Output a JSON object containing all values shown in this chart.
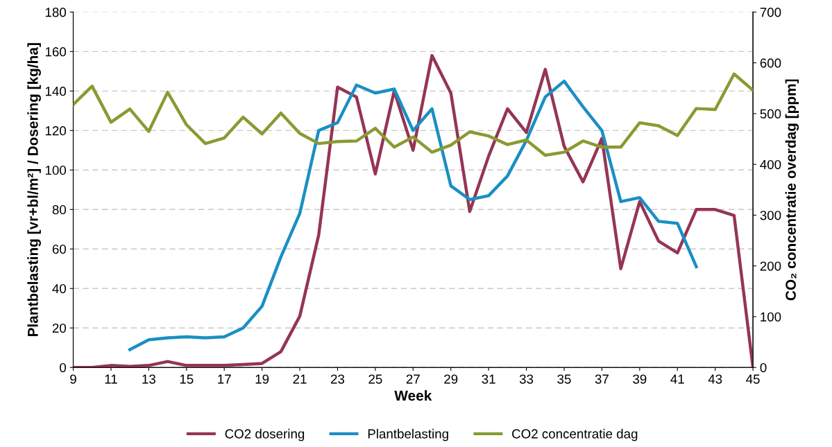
{
  "chart_data": {
    "type": "line",
    "xlabel": "Week",
    "ylabel": "Plantbelasting [vr+bl/m²] / Dosering [kg/ha]",
    "y2label": "CO₂ concentratie overdag [ppm]",
    "xlim": [
      9,
      45
    ],
    "xticks": [
      9,
      11,
      13,
      15,
      17,
      19,
      21,
      23,
      25,
      27,
      29,
      31,
      33,
      35,
      37,
      39,
      41,
      43,
      45
    ],
    "ylim": [
      0,
      180
    ],
    "yticks": [
      0,
      20,
      40,
      60,
      80,
      100,
      120,
      140,
      160,
      180
    ],
    "y2lim": [
      0,
      700
    ],
    "y2ticks": [
      0,
      100,
      200,
      300,
      400,
      500,
      600,
      700
    ],
    "grid": "y",
    "legend": "bottom",
    "marker": "none",
    "line_style": "solid",
    "series": [
      {
        "name": "CO2 dosering",
        "color": "#953553",
        "x": [
          9,
          10,
          11,
          12,
          13,
          14,
          15,
          16,
          17,
          18,
          19,
          20,
          21,
          22,
          23,
          24,
          25,
          26,
          27,
          28,
          29,
          30,
          31,
          32,
          33,
          34,
          35,
          36,
          37,
          38,
          39,
          40,
          41,
          42,
          43,
          44,
          45
        ],
        "values": [
          0,
          0,
          1,
          0.5,
          1,
          3,
          1,
          1,
          1,
          1.5,
          2,
          8,
          26,
          67,
          142,
          137,
          98,
          140,
          110,
          158,
          139,
          79,
          107,
          131,
          119,
          151,
          112,
          94,
          116,
          50,
          84,
          64,
          58,
          80,
          80,
          77,
          0
        ]
      },
      {
        "name": "Plantbelasting",
        "color": "#1a8fc4",
        "x": [
          12,
          13,
          14,
          15,
          16,
          17,
          18,
          19,
          20,
          21,
          22,
          23,
          24,
          25,
          26,
          27,
          28,
          29,
          30,
          31,
          32,
          33,
          34,
          35,
          36,
          37,
          38,
          39,
          40,
          41,
          42
        ],
        "values": [
          9,
          14,
          15,
          15.5,
          15,
          15.5,
          20,
          31,
          56,
          78,
          120,
          124,
          143,
          139,
          141,
          120,
          131,
          92,
          85,
          87,
          97,
          115,
          137,
          145,
          132,
          120,
          84,
          86,
          74,
          73,
          51
        ]
      },
      {
        "name": "CO2 concentratie dag",
        "color": "#8a9a32",
        "axis": "y2",
        "x": [
          9,
          10,
          11,
          12,
          13,
          14,
          15,
          16,
          17,
          18,
          19,
          20,
          21,
          22,
          23,
          24,
          25,
          26,
          27,
          28,
          29,
          30,
          31,
          32,
          33,
          34,
          35,
          36,
          37,
          38,
          39,
          40,
          41,
          42,
          43,
          44,
          45
        ],
        "values": [
          518,
          554,
          483,
          509,
          465,
          542,
          478,
          441,
          452,
          493,
          460,
          501,
          461,
          441,
          445,
          446,
          471,
          434,
          454,
          424,
          438,
          464,
          456,
          439,
          448,
          418,
          424,
          446,
          434,
          434,
          482,
          476,
          457,
          510,
          508,
          578,
          546
        ]
      }
    ]
  }
}
